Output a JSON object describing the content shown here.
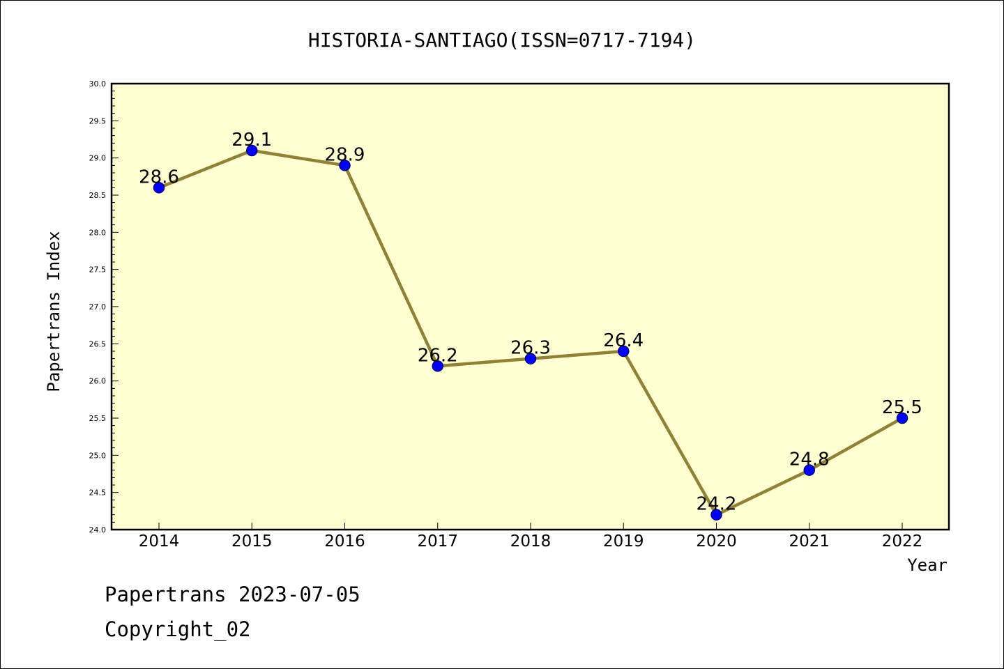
{
  "chart_data": {
    "type": "line",
    "title": "HISTORIA-SANTIAGO(ISSN=0717-7194)",
    "xlabel": "Year",
    "ylabel": "Papertrans Index",
    "categories": [
      "2014",
      "2015",
      "2016",
      "2017",
      "2018",
      "2019",
      "2020",
      "2021",
      "2022"
    ],
    "series": [
      {
        "values": [
          28.6,
          29.1,
          28.9,
          26.2,
          26.3,
          26.4,
          24.2,
          24.8,
          25.5
        ],
        "labels": [
          "28.6",
          "29.1",
          "28.9",
          "26.2",
          "26.3",
          "26.4",
          "24.2",
          "24.8",
          "25.5"
        ]
      }
    ],
    "yticks": [
      "24.0",
      "24.5",
      "25.0",
      "25.5",
      "26.0",
      "26.5",
      "27.0",
      "27.5",
      "28.0",
      "28.5",
      "29.0",
      "29.5",
      "30.0"
    ],
    "ylim": [
      24.0,
      30.0
    ],
    "grid": false,
    "legend": "none"
  },
  "footer": {
    "line1": "Papertrans 2023-07-05",
    "line2": "Copyright_02"
  },
  "colors": {
    "plot_background": "#ffffd2",
    "line": "#8f8236",
    "marker": "#0000ff",
    "marker_edge": "#000080"
  }
}
